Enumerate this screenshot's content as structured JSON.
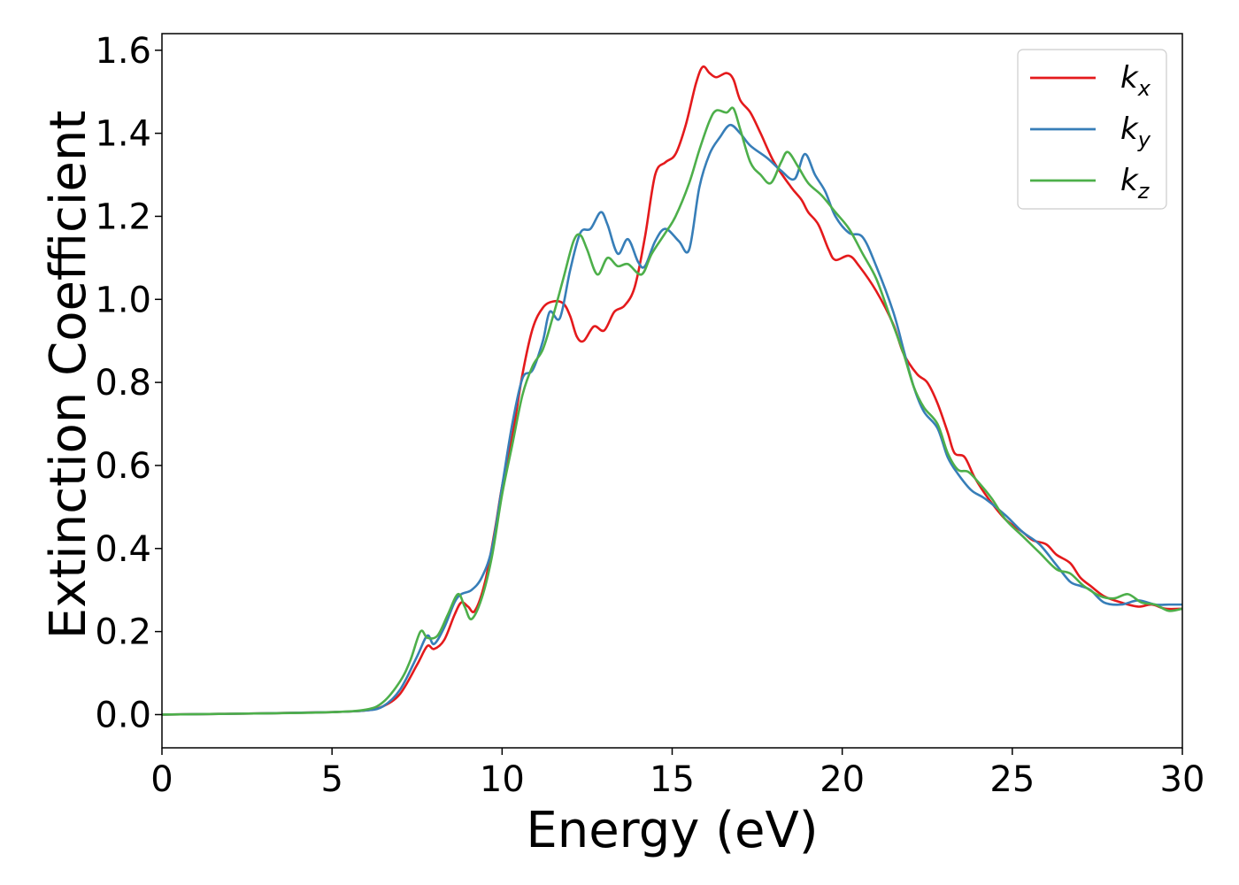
{
  "chart_data": {
    "type": "line",
    "xlabel": "Energy (eV)",
    "ylabel": "Extinction Coefficient",
    "xlim": [
      0,
      30
    ],
    "ylim": [
      -0.08,
      1.64
    ],
    "xticks": [
      0,
      5,
      10,
      15,
      20,
      25,
      30
    ],
    "xtick_labels": [
      "0",
      "5",
      "10",
      "15",
      "20",
      "25",
      "30"
    ],
    "yticks": [
      0.0,
      0.2,
      0.4,
      0.6,
      0.8,
      1.0,
      1.2,
      1.4,
      1.6
    ],
    "ytick_labels": [
      "0.0",
      "0.2",
      "0.4",
      "0.6",
      "0.8",
      "1.0",
      "1.2",
      "1.4",
      "1.6"
    ],
    "grid": false,
    "legend_position": "top-right",
    "series": [
      {
        "name": "k_x",
        "label_base": "k",
        "label_sub": "x",
        "color": "#e41a1c",
        "points": [
          [
            0,
            0
          ],
          [
            3,
            0.003
          ],
          [
            5,
            0.006
          ],
          [
            6,
            0.01
          ],
          [
            6.5,
            0.02
          ],
          [
            7,
            0.05
          ],
          [
            7.5,
            0.12
          ],
          [
            7.8,
            0.165
          ],
          [
            8,
            0.158
          ],
          [
            8.3,
            0.18
          ],
          [
            8.6,
            0.24
          ],
          [
            8.8,
            0.27
          ],
          [
            9,
            0.26
          ],
          [
            9.2,
            0.25
          ],
          [
            9.5,
            0.32
          ],
          [
            9.8,
            0.45
          ],
          [
            10,
            0.55
          ],
          [
            10.3,
            0.67
          ],
          [
            10.6,
            0.82
          ],
          [
            10.9,
            0.93
          ],
          [
            11.2,
            0.98
          ],
          [
            11.5,
            0.995
          ],
          [
            11.8,
            0.99
          ],
          [
            12,
            0.96
          ],
          [
            12.2,
            0.91
          ],
          [
            12.4,
            0.9
          ],
          [
            12.7,
            0.935
          ],
          [
            13,
            0.925
          ],
          [
            13.3,
            0.97
          ],
          [
            13.6,
            0.985
          ],
          [
            13.9,
            1.03
          ],
          [
            14.2,
            1.15
          ],
          [
            14.5,
            1.3
          ],
          [
            14.8,
            1.33
          ],
          [
            15.1,
            1.35
          ],
          [
            15.4,
            1.42
          ],
          [
            15.7,
            1.52
          ],
          [
            15.9,
            1.56
          ],
          [
            16.1,
            1.545
          ],
          [
            16.3,
            1.535
          ],
          [
            16.6,
            1.545
          ],
          [
            16.8,
            1.53
          ],
          [
            17,
            1.48
          ],
          [
            17.3,
            1.45
          ],
          [
            17.6,
            1.4
          ],
          [
            18,
            1.33
          ],
          [
            18.5,
            1.27
          ],
          [
            18.8,
            1.24
          ],
          [
            19,
            1.21
          ],
          [
            19.3,
            1.18
          ],
          [
            19.6,
            1.12
          ],
          [
            19.8,
            1.095
          ],
          [
            20.2,
            1.105
          ],
          [
            20.5,
            1.08
          ],
          [
            21,
            1.02
          ],
          [
            21.5,
            0.94
          ],
          [
            21.8,
            0.87
          ],
          [
            22.2,
            0.82
          ],
          [
            22.5,
            0.8
          ],
          [
            22.8,
            0.75
          ],
          [
            23.1,
            0.68
          ],
          [
            23.3,
            0.63
          ],
          [
            23.6,
            0.62
          ],
          [
            23.9,
            0.57
          ],
          [
            24.3,
            0.52
          ],
          [
            24.8,
            0.47
          ],
          [
            25.3,
            0.44
          ],
          [
            25.6,
            0.42
          ],
          [
            26,
            0.41
          ],
          [
            26.3,
            0.385
          ],
          [
            26.7,
            0.365
          ],
          [
            27,
            0.33
          ],
          [
            27.3,
            0.31
          ],
          [
            27.7,
            0.285
          ],
          [
            28.2,
            0.27
          ],
          [
            28.7,
            0.26
          ],
          [
            29.1,
            0.265
          ],
          [
            29.5,
            0.255
          ],
          [
            30,
            0.255
          ]
        ]
      },
      {
        "name": "k_y",
        "label_base": "k",
        "label_sub": "y",
        "color": "#377eb8",
        "points": [
          [
            0,
            0
          ],
          [
            3,
            0.003
          ],
          [
            5,
            0.006
          ],
          [
            6,
            0.01
          ],
          [
            6.5,
            0.02
          ],
          [
            7,
            0.06
          ],
          [
            7.5,
            0.14
          ],
          [
            7.8,
            0.19
          ],
          [
            8,
            0.17
          ],
          [
            8.3,
            0.21
          ],
          [
            8.6,
            0.27
          ],
          [
            8.8,
            0.29
          ],
          [
            9.1,
            0.3
          ],
          [
            9.4,
            0.33
          ],
          [
            9.7,
            0.4
          ],
          [
            10,
            0.55
          ],
          [
            10.3,
            0.7
          ],
          [
            10.6,
            0.81
          ],
          [
            10.9,
            0.83
          ],
          [
            11.2,
            0.9
          ],
          [
            11.4,
            0.97
          ],
          [
            11.7,
            0.955
          ],
          [
            12,
            1.07
          ],
          [
            12.3,
            1.16
          ],
          [
            12.6,
            1.17
          ],
          [
            12.9,
            1.21
          ],
          [
            13.1,
            1.18
          ],
          [
            13.4,
            1.11
          ],
          [
            13.7,
            1.145
          ],
          [
            14,
            1.09
          ],
          [
            14.2,
            1.08
          ],
          [
            14.5,
            1.14
          ],
          [
            14.8,
            1.17
          ],
          [
            15.2,
            1.14
          ],
          [
            15.5,
            1.12
          ],
          [
            15.8,
            1.27
          ],
          [
            16.1,
            1.35
          ],
          [
            16.4,
            1.39
          ],
          [
            16.7,
            1.42
          ],
          [
            17,
            1.4
          ],
          [
            17.3,
            1.37
          ],
          [
            17.8,
            1.34
          ],
          [
            18.2,
            1.31
          ],
          [
            18.6,
            1.29
          ],
          [
            18.9,
            1.35
          ],
          [
            19.2,
            1.3
          ],
          [
            19.5,
            1.26
          ],
          [
            19.8,
            1.2
          ],
          [
            20.2,
            1.16
          ],
          [
            20.6,
            1.15
          ],
          [
            21,
            1.08
          ],
          [
            21.5,
            0.97
          ],
          [
            21.8,
            0.88
          ],
          [
            22.1,
            0.79
          ],
          [
            22.4,
            0.73
          ],
          [
            22.8,
            0.69
          ],
          [
            23.1,
            0.62
          ],
          [
            23.4,
            0.58
          ],
          [
            23.8,
            0.54
          ],
          [
            24.2,
            0.52
          ],
          [
            24.8,
            0.48
          ],
          [
            25.3,
            0.44
          ],
          [
            25.8,
            0.41
          ],
          [
            26.3,
            0.36
          ],
          [
            26.7,
            0.32
          ],
          [
            27,
            0.31
          ],
          [
            27.3,
            0.3
          ],
          [
            27.7,
            0.27
          ],
          [
            28.2,
            0.265
          ],
          [
            28.7,
            0.275
          ],
          [
            29.2,
            0.265
          ],
          [
            29.6,
            0.265
          ],
          [
            30,
            0.265
          ]
        ]
      },
      {
        "name": "k_z",
        "label_base": "k",
        "label_sub": "z",
        "color": "#4daf4a",
        "points": [
          [
            0,
            0
          ],
          [
            3,
            0.003
          ],
          [
            5,
            0.006
          ],
          [
            6,
            0.012
          ],
          [
            6.5,
            0.03
          ],
          [
            7,
            0.08
          ],
          [
            7.3,
            0.13
          ],
          [
            7.6,
            0.2
          ],
          [
            7.8,
            0.185
          ],
          [
            8.1,
            0.19
          ],
          [
            8.4,
            0.24
          ],
          [
            8.7,
            0.29
          ],
          [
            8.9,
            0.26
          ],
          [
            9.1,
            0.23
          ],
          [
            9.4,
            0.28
          ],
          [
            9.7,
            0.38
          ],
          [
            10,
            0.53
          ],
          [
            10.3,
            0.65
          ],
          [
            10.6,
            0.77
          ],
          [
            10.9,
            0.84
          ],
          [
            11.2,
            0.88
          ],
          [
            11.5,
            0.96
          ],
          [
            11.8,
            1.05
          ],
          [
            12.1,
            1.14
          ],
          [
            12.3,
            1.155
          ],
          [
            12.5,
            1.12
          ],
          [
            12.8,
            1.06
          ],
          [
            13.1,
            1.1
          ],
          [
            13.4,
            1.08
          ],
          [
            13.7,
            1.085
          ],
          [
            14.1,
            1.06
          ],
          [
            14.4,
            1.11
          ],
          [
            14.8,
            1.16
          ],
          [
            15.1,
            1.2
          ],
          [
            15.5,
            1.28
          ],
          [
            15.8,
            1.36
          ],
          [
            16.1,
            1.43
          ],
          [
            16.3,
            1.455
          ],
          [
            16.6,
            1.45
          ],
          [
            16.8,
            1.46
          ],
          [
            17,
            1.41
          ],
          [
            17.3,
            1.33
          ],
          [
            17.6,
            1.3
          ],
          [
            17.9,
            1.28
          ],
          [
            18.2,
            1.33
          ],
          [
            18.4,
            1.355
          ],
          [
            18.7,
            1.32
          ],
          [
            19,
            1.28
          ],
          [
            19.4,
            1.25
          ],
          [
            19.8,
            1.21
          ],
          [
            20.2,
            1.17
          ],
          [
            20.6,
            1.11
          ],
          [
            21,
            1.05
          ],
          [
            21.4,
            0.96
          ],
          [
            21.8,
            0.87
          ],
          [
            22.1,
            0.79
          ],
          [
            22.4,
            0.74
          ],
          [
            22.8,
            0.7
          ],
          [
            23.1,
            0.63
          ],
          [
            23.4,
            0.59
          ],
          [
            23.7,
            0.585
          ],
          [
            24,
            0.56
          ],
          [
            24.4,
            0.52
          ],
          [
            24.8,
            0.47
          ],
          [
            25.3,
            0.43
          ],
          [
            25.8,
            0.39
          ],
          [
            26.3,
            0.35
          ],
          [
            26.7,
            0.34
          ],
          [
            27.1,
            0.31
          ],
          [
            27.6,
            0.285
          ],
          [
            28,
            0.28
          ],
          [
            28.4,
            0.29
          ],
          [
            28.8,
            0.27
          ],
          [
            29.2,
            0.265
          ],
          [
            29.6,
            0.25
          ],
          [
            30,
            0.255
          ]
        ]
      }
    ]
  }
}
